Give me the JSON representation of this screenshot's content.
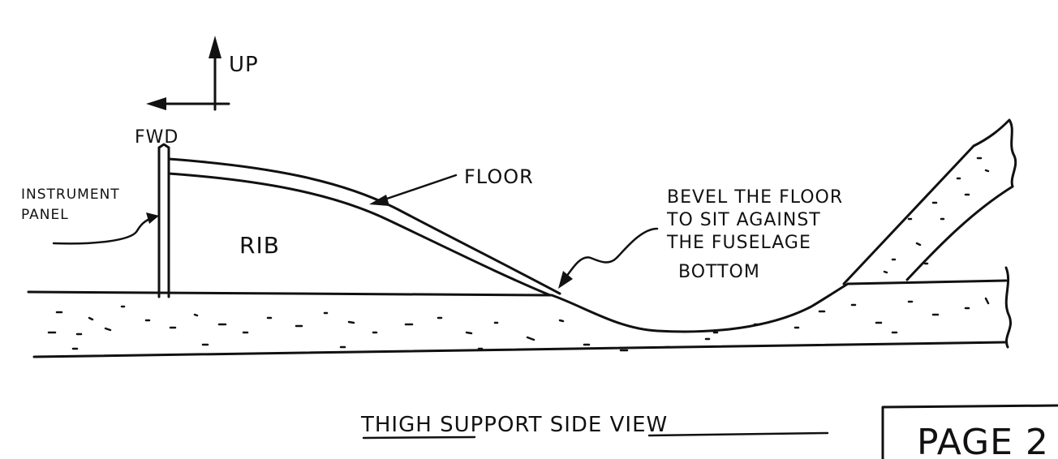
{
  "diagram": {
    "labels": {
      "up": "UP",
      "fwd": "FWD",
      "instrument_panel_line1": "INSTRUMENT",
      "instrument_panel_line2": "PANEL",
      "rib": "RIB",
      "floor": "FLOOR",
      "bevel_line1": "BEVEL THE FLOOR",
      "bevel_line2": "TO SIT AGAINST",
      "bevel_line3": "THE FUSELAGE",
      "bevel_line4": "BOTTOM"
    },
    "caption": "THIGH SUPPORT   SIDE VIEW",
    "page_label": "PAGE 2"
  },
  "colors": {
    "ink": "#111111",
    "paper": "#ffffff"
  }
}
